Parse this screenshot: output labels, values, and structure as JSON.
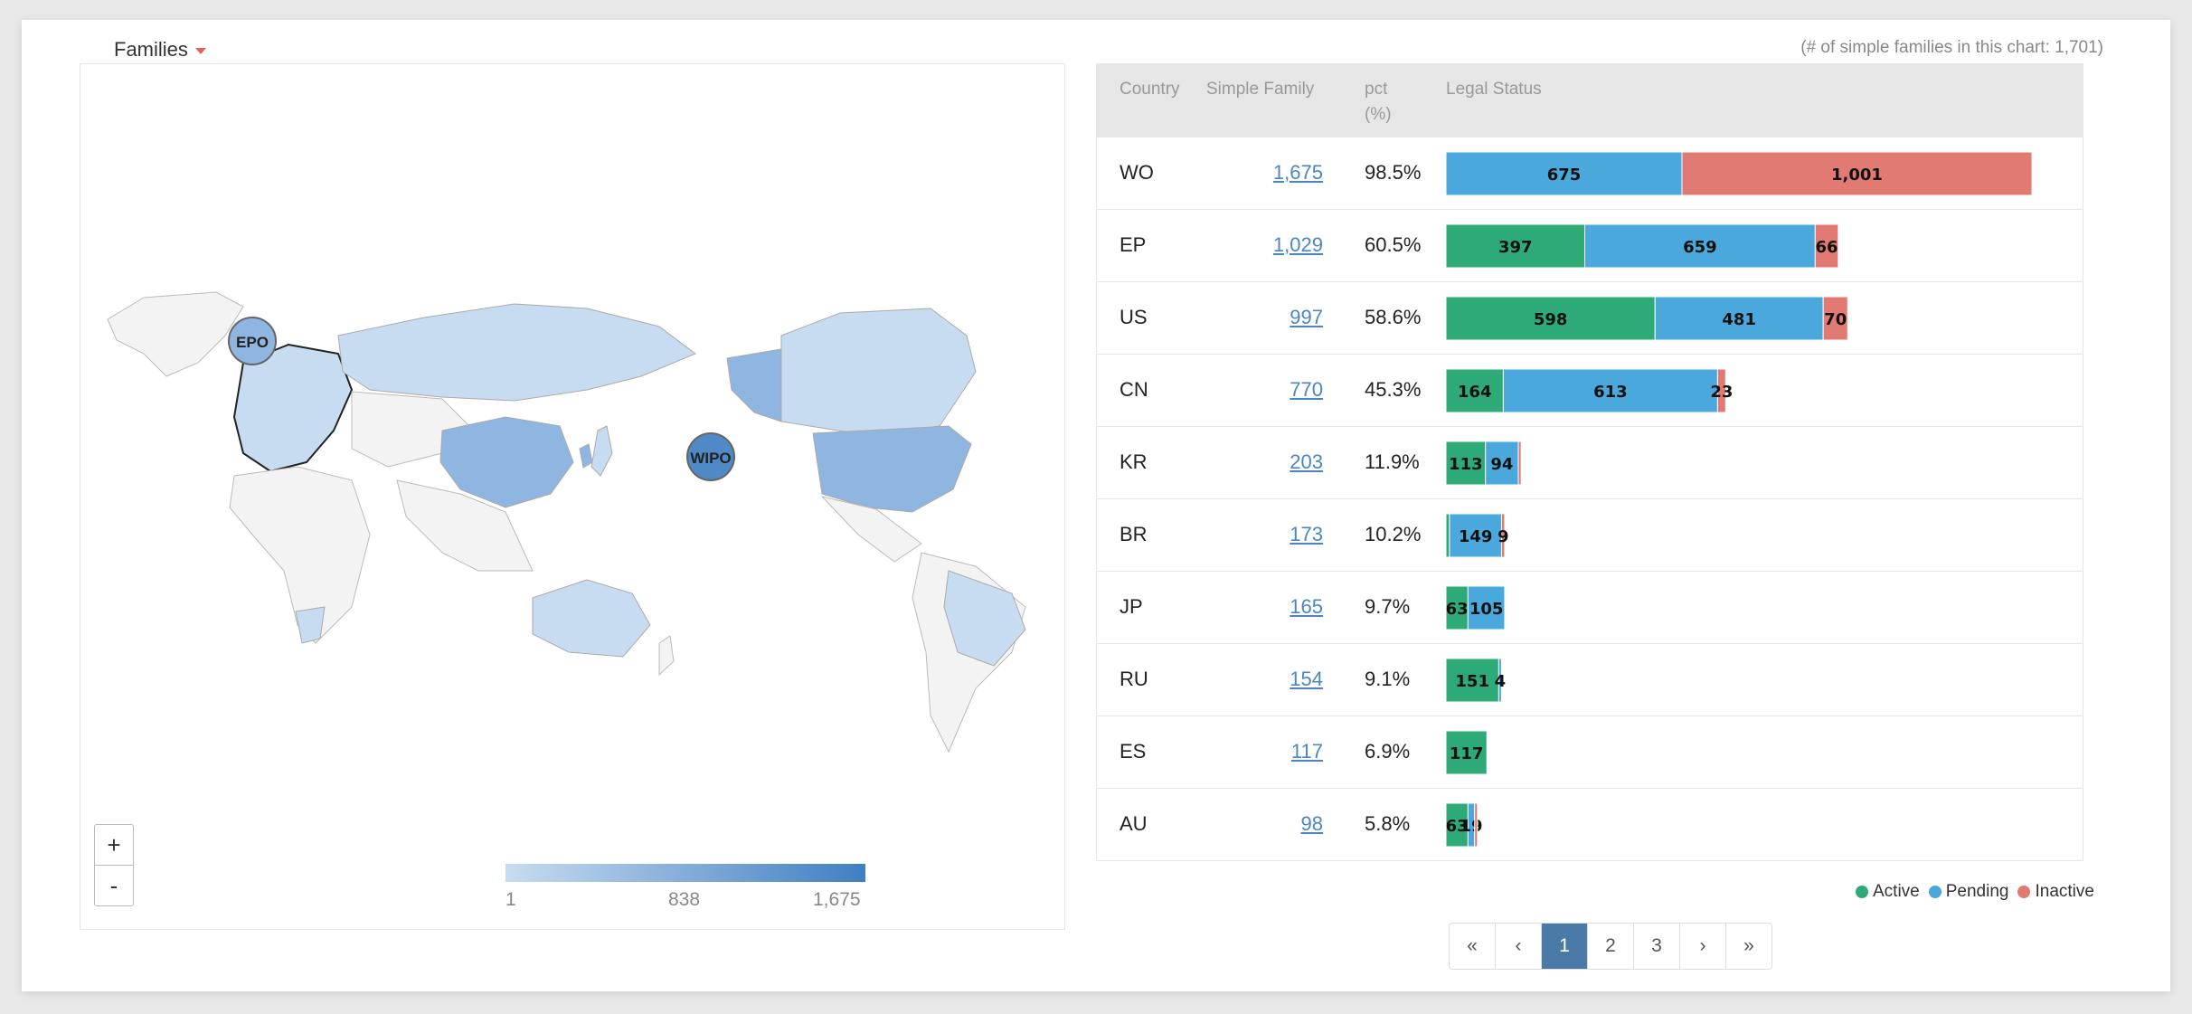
{
  "header": {
    "dropdown_label": "Families",
    "count_note": "(# of simple families in this chart: 1,701)"
  },
  "map": {
    "markers": [
      "EPO",
      "WIPO"
    ],
    "zoom_in": "+",
    "zoom_out": "-",
    "legend_ticks": [
      "1",
      "838",
      "1,675"
    ],
    "colors": {
      "low": "#c8dcf1",
      "mid": "#8eb6e0",
      "high": "#3f7fc2",
      "none": "#f3f3f3"
    }
  },
  "table": {
    "headers": {
      "country": "Country",
      "family": "Simple Family",
      "pct": "pct",
      "pct_unit": "(%)",
      "status": "Legal Status"
    },
    "rows": [
      {
        "country": "WO",
        "family": "1,675",
        "pct": "98.5%",
        "active": 0,
        "pending": 675,
        "inactive": 1001,
        "active_label": "",
        "pending_label": "675",
        "inactive_label": "1,001"
      },
      {
        "country": "EP",
        "family": "1,029",
        "pct": "60.5%",
        "active": 397,
        "pending": 659,
        "inactive": 66,
        "active_label": "397",
        "pending_label": "659",
        "inactive_label": "66"
      },
      {
        "country": "US",
        "family": "997",
        "pct": "58.6%",
        "active": 598,
        "pending": 481,
        "inactive": 70,
        "active_label": "598",
        "pending_label": "481",
        "inactive_label": "70"
      },
      {
        "country": "CN",
        "family": "770",
        "pct": "45.3%",
        "active": 164,
        "pending": 613,
        "inactive": 23,
        "active_label": "164",
        "pending_label": "613",
        "inactive_label": "23"
      },
      {
        "country": "KR",
        "family": "203",
        "pct": "11.9%",
        "active": 113,
        "pending": 94,
        "inactive": 8,
        "active_label": "113",
        "pending_label": "94",
        "inactive_label": ""
      },
      {
        "country": "BR",
        "family": "173",
        "pct": "10.2%",
        "active": 10,
        "pending": 149,
        "inactive": 9,
        "active_label": "",
        "pending_label": "149",
        "inactive_label": "9"
      },
      {
        "country": "JP",
        "family": "165",
        "pct": "9.7%",
        "active": 63,
        "pending": 105,
        "inactive": 0,
        "active_label": "63",
        "pending_label": "105",
        "inactive_label": ""
      },
      {
        "country": "RU",
        "family": "154",
        "pct": "9.1%",
        "active": 151,
        "pending": 4,
        "inactive": 0,
        "active_label": "151",
        "pending_label": "4",
        "inactive_label": ""
      },
      {
        "country": "ES",
        "family": "117",
        "pct": "6.9%",
        "active": 117,
        "pending": 0,
        "inactive": 0,
        "active_label": "117",
        "pending_label": "",
        "inactive_label": ""
      },
      {
        "country": "AU",
        "family": "98",
        "pct": "5.8%",
        "active": 63,
        "pending": 19,
        "inactive": 8,
        "active_label": "63",
        "pending_label": "19",
        "inactive_label": ""
      }
    ],
    "scale_max": 1676,
    "colors": {
      "active": "#2eaa78",
      "pending": "#4aa8dc",
      "inactive": "#e07a72"
    }
  },
  "legend": {
    "active": "Active",
    "pending": "Pending",
    "inactive": "Inactive"
  },
  "pager": {
    "first": "«",
    "prev": "‹",
    "pages": [
      "1",
      "2",
      "3"
    ],
    "next": "›",
    "last": "»",
    "active": "1"
  }
}
